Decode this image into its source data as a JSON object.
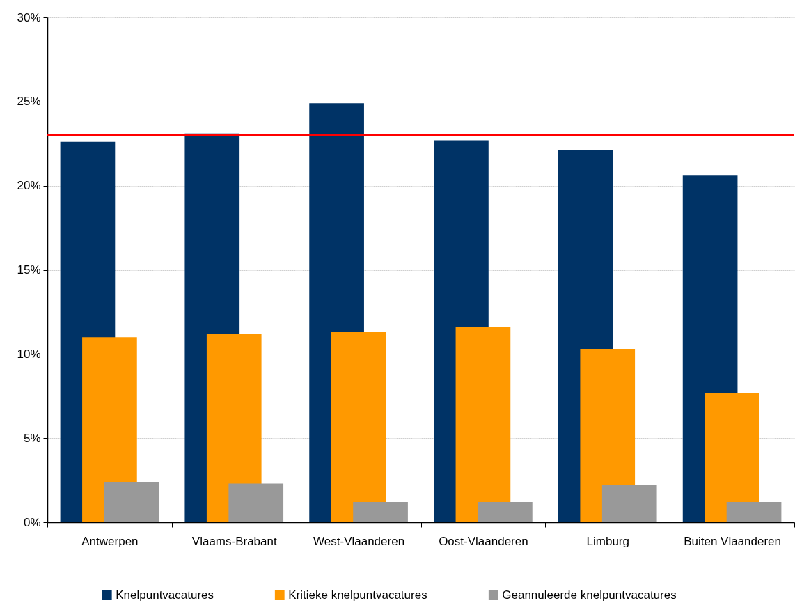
{
  "chart_data": {
    "type": "bar",
    "categories": [
      "Antwerpen",
      "Vlaams-Brabant",
      "West-Vlaanderen",
      "Oost-Vlaanderen",
      "Limburg",
      "Buiten Vlaanderen"
    ],
    "series": [
      {
        "name": "Knelpuntvacatures",
        "color": "#003366",
        "values": [
          22.6,
          23.1,
          24.9,
          22.7,
          22.1,
          20.6
        ]
      },
      {
        "name": "Kritieke knelpuntvacatures",
        "color": "#ff9900",
        "values": [
          11.0,
          11.2,
          11.3,
          11.6,
          10.3,
          7.7
        ]
      },
      {
        "name": "Geannuleerde knelpuntvacatures",
        "color": "#999999",
        "values": [
          2.4,
          2.3,
          1.2,
          1.2,
          2.2,
          1.2
        ]
      }
    ],
    "ylim": [
      0,
      30
    ],
    "yticks": [
      {
        "value": 0,
        "label": "0%"
      },
      {
        "value": 5,
        "label": "5%"
      },
      {
        "value": 10,
        "label": "10%"
      },
      {
        "value": 15,
        "label": "15%"
      },
      {
        "value": 20,
        "label": "20%"
      },
      {
        "value": 25,
        "label": "25%"
      },
      {
        "value": 30,
        "label": "30%"
      }
    ],
    "grid": "y",
    "legend": "bottom",
    "ref_lines": [
      {
        "axis": "y",
        "value": 23,
        "color": "#ff0000"
      }
    ]
  }
}
